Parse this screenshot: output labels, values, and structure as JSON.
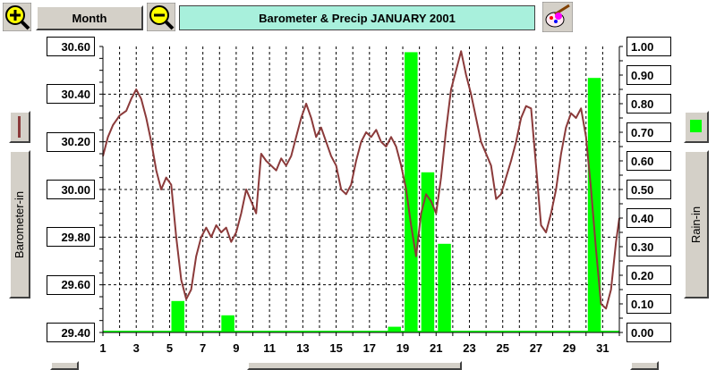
{
  "toolbar": {
    "zoom_in_icon": "zoom-in-magnifier",
    "zoom_out_icon": "zoom-out-magnifier",
    "period_label": "Month",
    "title": "Barometer & Precip  JANUARY 2001",
    "paint_icon": "paint-brush-palette"
  },
  "left_panel": {
    "series_label": "Barometer-in",
    "swatch_color": "#8b3a3a"
  },
  "right_panel": {
    "series_label": "Rain-in",
    "swatch_color": "#00ff00"
  },
  "chart_data": {
    "type": "bar+line",
    "x_range": [
      1,
      32
    ],
    "x_ticks": [
      "1",
      "3",
      "5",
      "7",
      "9",
      "11",
      "13",
      "15",
      "17",
      "19",
      "21",
      "23",
      "25",
      "27",
      "29",
      "31"
    ],
    "grid": true,
    "barometer": {
      "name": "Barometer-in",
      "color": "#8b3a3a",
      "axis": "left",
      "ylim": [
        29.4,
        30.6
      ],
      "ticks": [
        "30.60",
        "30.40",
        "30.20",
        "30.00",
        "29.80",
        "29.60",
        "29.40"
      ],
      "points": [
        [
          1.0,
          30.14
        ],
        [
          1.3,
          30.22
        ],
        [
          1.6,
          30.27
        ],
        [
          2.0,
          30.31
        ],
        [
          2.4,
          30.33
        ],
        [
          2.7,
          30.38
        ],
        [
          3.0,
          30.42
        ],
        [
          3.3,
          30.38
        ],
        [
          3.6,
          30.3
        ],
        [
          3.9,
          30.2
        ],
        [
          4.2,
          30.08
        ],
        [
          4.5,
          30.0
        ],
        [
          4.8,
          30.05
        ],
        [
          5.1,
          30.02
        ],
        [
          5.4,
          29.8
        ],
        [
          5.7,
          29.62
        ],
        [
          6.0,
          29.54
        ],
        [
          6.3,
          29.58
        ],
        [
          6.6,
          29.72
        ],
        [
          6.9,
          29.8
        ],
        [
          7.2,
          29.84
        ],
        [
          7.5,
          29.8
        ],
        [
          7.8,
          29.85
        ],
        [
          8.1,
          29.82
        ],
        [
          8.4,
          29.84
        ],
        [
          8.7,
          29.78
        ],
        [
          9.0,
          29.82
        ],
        [
          9.3,
          29.9
        ],
        [
          9.6,
          30.0
        ],
        [
          9.9,
          29.95
        ],
        [
          10.2,
          29.9
        ],
        [
          10.5,
          30.15
        ],
        [
          10.8,
          30.12
        ],
        [
          11.1,
          30.1
        ],
        [
          11.4,
          30.08
        ],
        [
          11.7,
          30.13
        ],
        [
          12.0,
          30.1
        ],
        [
          12.3,
          30.14
        ],
        [
          12.6,
          30.22
        ],
        [
          12.9,
          30.3
        ],
        [
          13.2,
          30.36
        ],
        [
          13.5,
          30.3
        ],
        [
          13.8,
          30.22
        ],
        [
          14.1,
          30.26
        ],
        [
          14.4,
          30.2
        ],
        [
          14.7,
          30.14
        ],
        [
          15.0,
          30.1
        ],
        [
          15.3,
          30.0
        ],
        [
          15.6,
          29.98
        ],
        [
          15.9,
          30.02
        ],
        [
          16.2,
          30.12
        ],
        [
          16.5,
          30.2
        ],
        [
          16.8,
          30.24
        ],
        [
          17.1,
          30.22
        ],
        [
          17.4,
          30.25
        ],
        [
          17.7,
          30.2
        ],
        [
          18.0,
          30.18
        ],
        [
          18.3,
          30.22
        ],
        [
          18.6,
          30.18
        ],
        [
          18.9,
          30.1
        ],
        [
          19.2,
          30.0
        ],
        [
          19.5,
          29.85
        ],
        [
          19.8,
          29.72
        ],
        [
          20.1,
          29.9
        ],
        [
          20.4,
          29.98
        ],
        [
          20.7,
          29.95
        ],
        [
          21.0,
          29.9
        ],
        [
          21.3,
          30.05
        ],
        [
          21.6,
          30.25
        ],
        [
          21.9,
          30.42
        ],
        [
          22.2,
          30.5
        ],
        [
          22.5,
          30.58
        ],
        [
          22.8,
          30.48
        ],
        [
          23.1,
          30.4
        ],
        [
          23.4,
          30.3
        ],
        [
          23.7,
          30.2
        ],
        [
          24.0,
          30.15
        ],
        [
          24.3,
          30.1
        ],
        [
          24.6,
          29.96
        ],
        [
          24.9,
          29.98
        ],
        [
          25.2,
          30.05
        ],
        [
          25.5,
          30.12
        ],
        [
          25.8,
          30.2
        ],
        [
          26.1,
          30.3
        ],
        [
          26.4,
          30.35
        ],
        [
          26.7,
          30.34
        ],
        [
          27.0,
          30.1
        ],
        [
          27.3,
          29.85
        ],
        [
          27.6,
          29.82
        ],
        [
          27.9,
          29.9
        ],
        [
          28.2,
          30.0
        ],
        [
          28.5,
          30.15
        ],
        [
          28.8,
          30.26
        ],
        [
          29.1,
          30.32
        ],
        [
          29.4,
          30.3
        ],
        [
          29.7,
          30.34
        ],
        [
          30.0,
          30.22
        ],
        [
          30.3,
          30.0
        ],
        [
          30.6,
          29.75
        ],
        [
          30.9,
          29.52
        ],
        [
          31.2,
          29.5
        ],
        [
          31.5,
          29.58
        ],
        [
          31.8,
          29.78
        ],
        [
          32.0,
          29.88
        ]
      ]
    },
    "rain": {
      "name": "Rain-in",
      "color": "#00ff00",
      "axis": "right",
      "ylim": [
        0.0,
        1.0
      ],
      "ticks": [
        "1.00",
        "0.90",
        "0.80",
        "0.70",
        "0.60",
        "0.50",
        "0.40",
        "0.30",
        "0.20",
        "0.10",
        "0.00"
      ],
      "bars": [
        [
          5.5,
          0.11
        ],
        [
          8.5,
          0.06
        ],
        [
          18.5,
          0.02
        ],
        [
          19.5,
          0.98
        ],
        [
          20.5,
          0.56
        ],
        [
          21.5,
          0.31
        ],
        [
          30.5,
          0.89
        ]
      ]
    }
  }
}
